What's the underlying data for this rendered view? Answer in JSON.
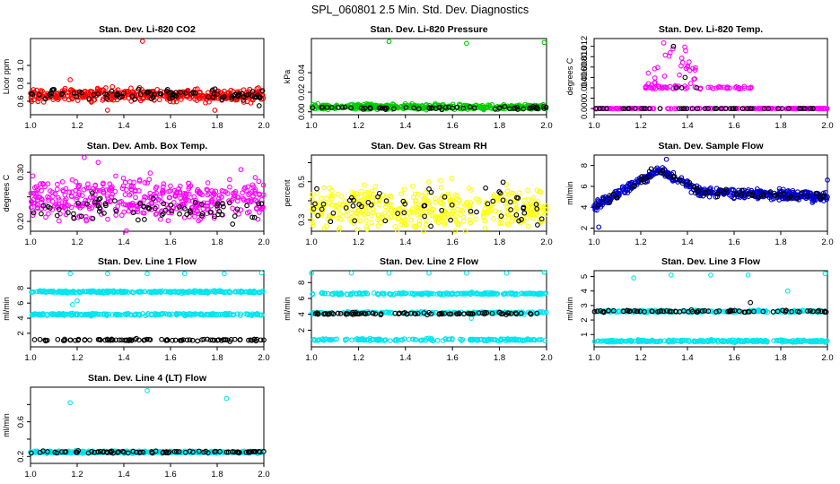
{
  "main_title": "SPL_060801  2.5 Min. Std. Dev. Diagnostics",
  "chart_data": [
    {
      "type": "scatter",
      "title": "Stan. Dev. Li-820 CO2",
      "ylabel": "Licor ppm",
      "xlim": [
        1.0,
        2.0
      ],
      "ylim": [
        0.45,
        1.3
      ],
      "xticks": [
        1.0,
        1.2,
        1.4,
        1.6,
        1.8,
        2.0
      ],
      "yticks": [
        0.6,
        0.8,
        1.0
      ],
      "ytick_labels": [
        "0.6",
        "0.8",
        "1.0"
      ],
      "series": [
        {
          "name": "red",
          "color": "#ff0000",
          "cluster_center": 0.67,
          "cluster_spread": 0.06,
          "n": 420,
          "outliers": [
            [
              1.17,
              0.84
            ],
            [
              1.48,
              1.27
            ],
            [
              1.33,
              0.5
            ],
            [
              1.79,
              0.5
            ]
          ]
        },
        {
          "name": "black",
          "color": "#000000",
          "cluster_center": 0.67,
          "cluster_spread": 0.05,
          "n": 90,
          "outliers": [
            [
              1.98,
              0.55
            ]
          ]
        }
      ]
    },
    {
      "type": "scatter",
      "title": "Stan. Dev. Li-820 Pressure",
      "ylabel": "kPa",
      "xlim": [
        1.0,
        2.0
      ],
      "ylim": [
        -0.003,
        0.075
      ],
      "xticks": [
        1.0,
        1.2,
        1.4,
        1.6,
        1.8,
        2.0
      ],
      "yticks": [
        0.0,
        0.02,
        0.04
      ],
      "ytick_labels": [
        "0.00",
        "0.02",
        "0.04"
      ],
      "series": [
        {
          "name": "green",
          "color": "#00cc00",
          "cluster_center": 0.005,
          "cluster_spread": 0.0022,
          "n": 400,
          "outliers": [
            [
              1.33,
              0.072
            ],
            [
              1.66,
              0.07
            ],
            [
              1.99,
              0.071
            ]
          ]
        },
        {
          "name": "black",
          "color": "#000000",
          "cluster_center": 0.004,
          "cluster_spread": 0.0015,
          "n": 60,
          "outliers": []
        }
      ]
    },
    {
      "type": "scatter",
      "title": "Stan. Dev. Li-820 Temp.",
      "ylabel": "degrees C",
      "xlim": [
        1.0,
        2.0
      ],
      "ylim": [
        -0.0012,
        0.0135
      ],
      "xticks": [
        1.0,
        1.2,
        1.4,
        1.6,
        1.8,
        2.0
      ],
      "yticks": [
        0.0,
        0.002,
        0.004,
        0.006,
        0.008,
        0.01,
        0.012
      ],
      "ytick_labels": [
        "0.000",
        "",
        "0.004",
        "0.006",
        "0.008",
        "0.010",
        "0.012"
      ],
      "series": [
        {
          "name": "magenta",
          "color": "#ff00ff",
          "n": 320,
          "description": "zero baseline except rows at 0.004 and 0.00 with a peak near x=1.33 reaching 0.0125",
          "outliers": []
        },
        {
          "name": "black",
          "color": "#000000",
          "n": 50,
          "outliers": [
            [
              1.34,
              0.012
            ],
            [
              1.39,
              0.006
            ],
            [
              1.44,
              0.004
            ]
          ]
        }
      ]
    },
    {
      "type": "scatter",
      "title": "Stan. Dev. Amb. Box Temp.",
      "ylabel": "degrees C",
      "xlim": [
        1.0,
        2.0
      ],
      "ylim": [
        0.18,
        0.335
      ],
      "xticks": [
        1.0,
        1.2,
        1.4,
        1.6,
        1.8,
        2.0
      ],
      "yticks": [
        0.2,
        0.25,
        0.3
      ],
      "ytick_labels": [
        "0.20",
        "",
        "0.30"
      ],
      "series": [
        {
          "name": "magenta",
          "color": "#ff00ff",
          "cluster_center": 0.245,
          "cluster_spread": 0.035,
          "n": 430,
          "outliers": [
            [
              1.23,
              0.33
            ],
            [
              1.29,
              0.32
            ]
          ]
        },
        {
          "name": "black",
          "color": "#000000",
          "cluster_center": 0.225,
          "cluster_spread": 0.02,
          "n": 70,
          "outliers": []
        }
      ]
    },
    {
      "type": "scatter",
      "title": "Stan. Dev. Gas Stream RH",
      "ylabel": "percent",
      "xlim": [
        1.0,
        2.0
      ],
      "ylim": [
        0.24,
        0.64
      ],
      "xticks": [
        1.0,
        1.2,
        1.4,
        1.6,
        1.8,
        2.0
      ],
      "yticks": [
        0.3,
        0.4,
        0.5,
        0.6
      ],
      "ytick_labels": [
        "0.3",
        "",
        "0.5",
        ""
      ],
      "series": [
        {
          "name": "yellow",
          "color": "#ffff00",
          "cluster_center": 0.36,
          "cluster_spread": 0.1,
          "n": 420,
          "outliers": []
        },
        {
          "name": "black",
          "color": "#000000",
          "cluster_center": 0.38,
          "cluster_spread": 0.1,
          "n": 60,
          "outliers": []
        }
      ]
    },
    {
      "type": "scatter",
      "title": "Stan. Dev. Sample Flow",
      "ylabel": "ml/min",
      "xlim": [
        1.0,
        2.0
      ],
      "ylim": [
        1.7,
        9.0
      ],
      "xticks": [
        1.0,
        1.2,
        1.4,
        1.6,
        1.8,
        2.0
      ],
      "yticks": [
        2,
        4,
        6,
        8
      ],
      "ytick_labels": [
        "2",
        "4",
        "6",
        "8"
      ],
      "series": [
        {
          "name": "blue",
          "color": "#0000cc",
          "n": 520,
          "description": "rises from ~4 at x=1.0 to ~7.6 near x=1.28, falls to ~5.5 by x=1.45, then ~5 to x=2.0",
          "outliers": [
            [
              1.02,
              2.1
            ],
            [
              1.31,
              8.6
            ],
            [
              2.0,
              6.6
            ]
          ]
        },
        {
          "name": "black",
          "color": "#000000",
          "n": 60,
          "outliers": []
        }
      ]
    },
    {
      "type": "scatter",
      "title": "Stan. Dev. Line 1 Flow",
      "ylabel": "ml/min",
      "xlim": [
        1.0,
        2.0
      ],
      "ylim": [
        0.2,
        10.3
      ],
      "xticks": [
        1.0,
        1.2,
        1.4,
        1.6,
        1.8,
        2.0
      ],
      "yticks": [
        2,
        4,
        6,
        8
      ],
      "ytick_labels": [
        "2",
        "4",
        "6",
        "8"
      ],
      "series": [
        {
          "name": "cyan",
          "color": "#00e5ee",
          "bands": [
            7.5,
            4.5
          ],
          "n": 520,
          "outliers": [
            [
              1.17,
              9.9
            ],
            [
              1.33,
              9.9
            ],
            [
              1.5,
              9.9
            ],
            [
              1.66,
              9.9
            ],
            [
              1.83,
              9.9
            ],
            [
              1.99,
              10.0
            ],
            [
              1.18,
              5.8
            ],
            [
              1.2,
              6.3
            ]
          ]
        },
        {
          "name": "black",
          "color": "#000000",
          "bands": [
            1.1
          ],
          "n": 90,
          "outliers": []
        }
      ]
    },
    {
      "type": "scatter",
      "title": "Stan. Dev. Line 2 Flow",
      "ylabel": "ml/min",
      "xlim": [
        1.0,
        2.0
      ],
      "ylim": [
        -0.1,
        9.5
      ],
      "xticks": [
        1.0,
        1.2,
        1.4,
        1.6,
        1.8,
        2.0
      ],
      "yticks": [
        2,
        4,
        6,
        8
      ],
      "ytick_labels": [
        "2",
        "4",
        "6",
        "8"
      ],
      "series": [
        {
          "name": "cyan",
          "color": "#00e5ee",
          "bands": [
            6.6,
            4.2,
            0.8
          ],
          "n": 560,
          "outliers": [
            [
              1.0,
              9.2
            ],
            [
              1.17,
              9.2
            ],
            [
              1.33,
              9.2
            ],
            [
              1.5,
              9.2
            ],
            [
              1.66,
              9.2
            ],
            [
              1.83,
              9.2
            ],
            [
              1.99,
              9.3
            ],
            [
              1.68,
              3.5
            ]
          ]
        },
        {
          "name": "black",
          "color": "#000000",
          "bands": [
            4.1
          ],
          "n": 90,
          "outliers": []
        }
      ]
    },
    {
      "type": "scatter",
      "title": "Stan. Dev. Line 3 Flow",
      "ylabel": "ml/min",
      "xlim": [
        1.0,
        2.0
      ],
      "ylim": [
        0.15,
        5.4
      ],
      "xticks": [
        1.0,
        1.2,
        1.4,
        1.6,
        1.8,
        2.0
      ],
      "yticks": [
        1,
        2,
        3,
        4,
        5
      ],
      "ytick_labels": [
        "1",
        "2",
        "3",
        "4",
        "5"
      ],
      "series": [
        {
          "name": "cyan",
          "color": "#00e5ee",
          "bands": [
            2.6,
            0.55
          ],
          "n": 520,
          "outliers": [
            [
              1.17,
              4.9
            ],
            [
              1.33,
              5.1
            ],
            [
              1.5,
              5.1
            ],
            [
              1.66,
              5.1
            ],
            [
              1.83,
              4.0
            ],
            [
              1.99,
              5.2
            ]
          ]
        },
        {
          "name": "black",
          "color": "#000000",
          "bands": [
            2.6
          ],
          "n": 80,
          "outliers": [
            [
              1.67,
              3.2
            ]
          ]
        }
      ]
    },
    {
      "type": "scatter",
      "title": "Stan. Dev. Line 4 (LT) Flow",
      "ylabel": "ml/min",
      "xlim": [
        1.0,
        2.0
      ],
      "ylim": [
        0.12,
        1.0
      ],
      "xticks": [
        1.0,
        1.2,
        1.4,
        1.6,
        1.8,
        2.0
      ],
      "yticks": [
        0.2,
        0.4,
        0.6,
        0.8
      ],
      "ytick_labels": [
        "0.2",
        "",
        "0.6",
        ""
      ],
      "series": [
        {
          "name": "cyan",
          "color": "#00e5ee",
          "bands": [
            0.25
          ],
          "n": 480,
          "outliers": [
            [
              1.17,
              0.82
            ],
            [
              1.5,
              0.96
            ],
            [
              1.84,
              0.87
            ]
          ]
        },
        {
          "name": "black",
          "color": "#000000",
          "bands": [
            0.25
          ],
          "n": 80,
          "outliers": []
        }
      ]
    }
  ]
}
